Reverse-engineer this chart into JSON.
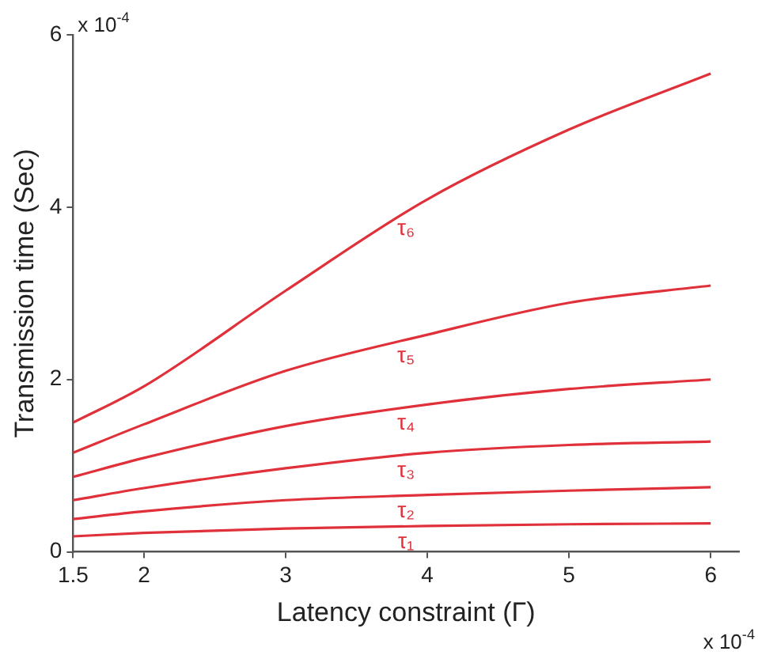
{
  "chart_data": {
    "type": "line",
    "xlabel": "Latency constraint (Γ)",
    "ylabel": "Transmission time (Sec)",
    "annotations": [
      "x 10$^{-4}$",
      "x 10$^{-4}$"
    ],
    "x": [
      1.5,
      2,
      3,
      4,
      5,
      6
    ],
    "series": [
      {
        "name": "τ₁",
        "color": "#e0303a",
        "values": [
          0.18,
          0.22,
          0.27,
          0.3,
          0.32,
          0.33
        ]
      },
      {
        "name": "τ₂",
        "color": "#e0303a",
        "values": [
          0.38,
          0.47,
          0.6,
          0.66,
          0.71,
          0.75
        ]
      },
      {
        "name": "τ₃",
        "color": "#e0303a",
        "values": [
          0.6,
          0.74,
          0.97,
          1.15,
          1.24,
          1.28
        ]
      },
      {
        "name": "τ₄",
        "color": "#e0303a",
        "values": [
          0.87,
          1.09,
          1.46,
          1.71,
          1.89,
          2.0
        ]
      },
      {
        "name": "τ₅",
        "color": "#e0303a",
        "values": [
          1.15,
          1.48,
          2.1,
          2.52,
          2.89,
          3.09
        ]
      },
      {
        "name": "τ₆",
        "color": "#e0303a",
        "values": [
          1.5,
          1.92,
          3.03,
          4.09,
          4.9,
          5.55
        ]
      }
    ],
    "xlim": [
      1.5,
      6.2
    ],
    "xticks": [
      1.5,
      2,
      3,
      4,
      5,
      6
    ],
    "ylim": [
      0,
      6
    ],
    "yticks": [
      0,
      2,
      4,
      6
    ],
    "grid": false,
    "legend": false,
    "marker": "none",
    "line_style": "solid"
  }
}
